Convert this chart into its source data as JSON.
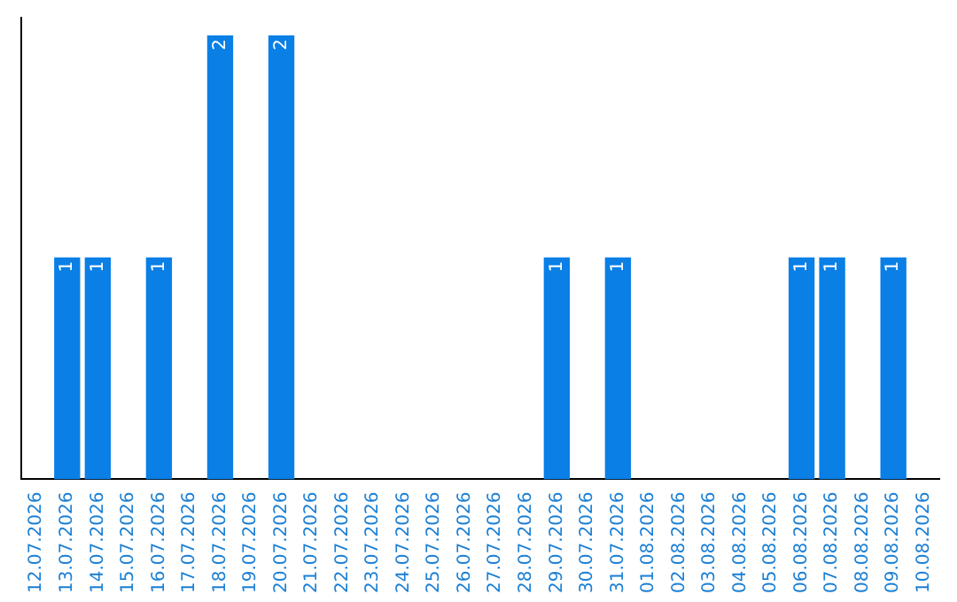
{
  "chart_data": {
    "type": "bar",
    "categories": [
      "12.07.2026",
      "13.07.2026",
      "14.07.2026",
      "15.07.2026",
      "16.07.2026",
      "17.07.2026",
      "18.07.2026",
      "19.07.2026",
      "20.07.2026",
      "21.07.2026",
      "22.07.2026",
      "23.07.2026",
      "24.07.2026",
      "25.07.2026",
      "26.07.2026",
      "27.07.2026",
      "28.07.2026",
      "29.07.2026",
      "30.07.2026",
      "31.07.2026",
      "01.08.2026",
      "02.08.2026",
      "03.08.2026",
      "04.08.2026",
      "05.08.2026",
      "06.08.2026",
      "07.08.2026",
      "08.08.2026",
      "09.08.2026",
      "10.08.2026"
    ],
    "values": [
      0,
      1,
      1,
      0,
      1,
      0,
      2,
      0,
      2,
      0,
      0,
      0,
      0,
      0,
      0,
      0,
      0,
      1,
      0,
      1,
      0,
      0,
      0,
      0,
      0,
      1,
      1,
      0,
      1,
      0
    ],
    "value_labels": [
      null,
      "1",
      "1",
      null,
      "1",
      null,
      "2",
      null,
      "2",
      null,
      null,
      null,
      null,
      null,
      null,
      null,
      null,
      "1",
      null,
      "1",
      null,
      null,
      null,
      null,
      null,
      "1",
      "1",
      null,
      "1",
      null
    ],
    "color": "#0a7fe6",
    "tick_labels": "x",
    "grid": false,
    "legend": false
  }
}
